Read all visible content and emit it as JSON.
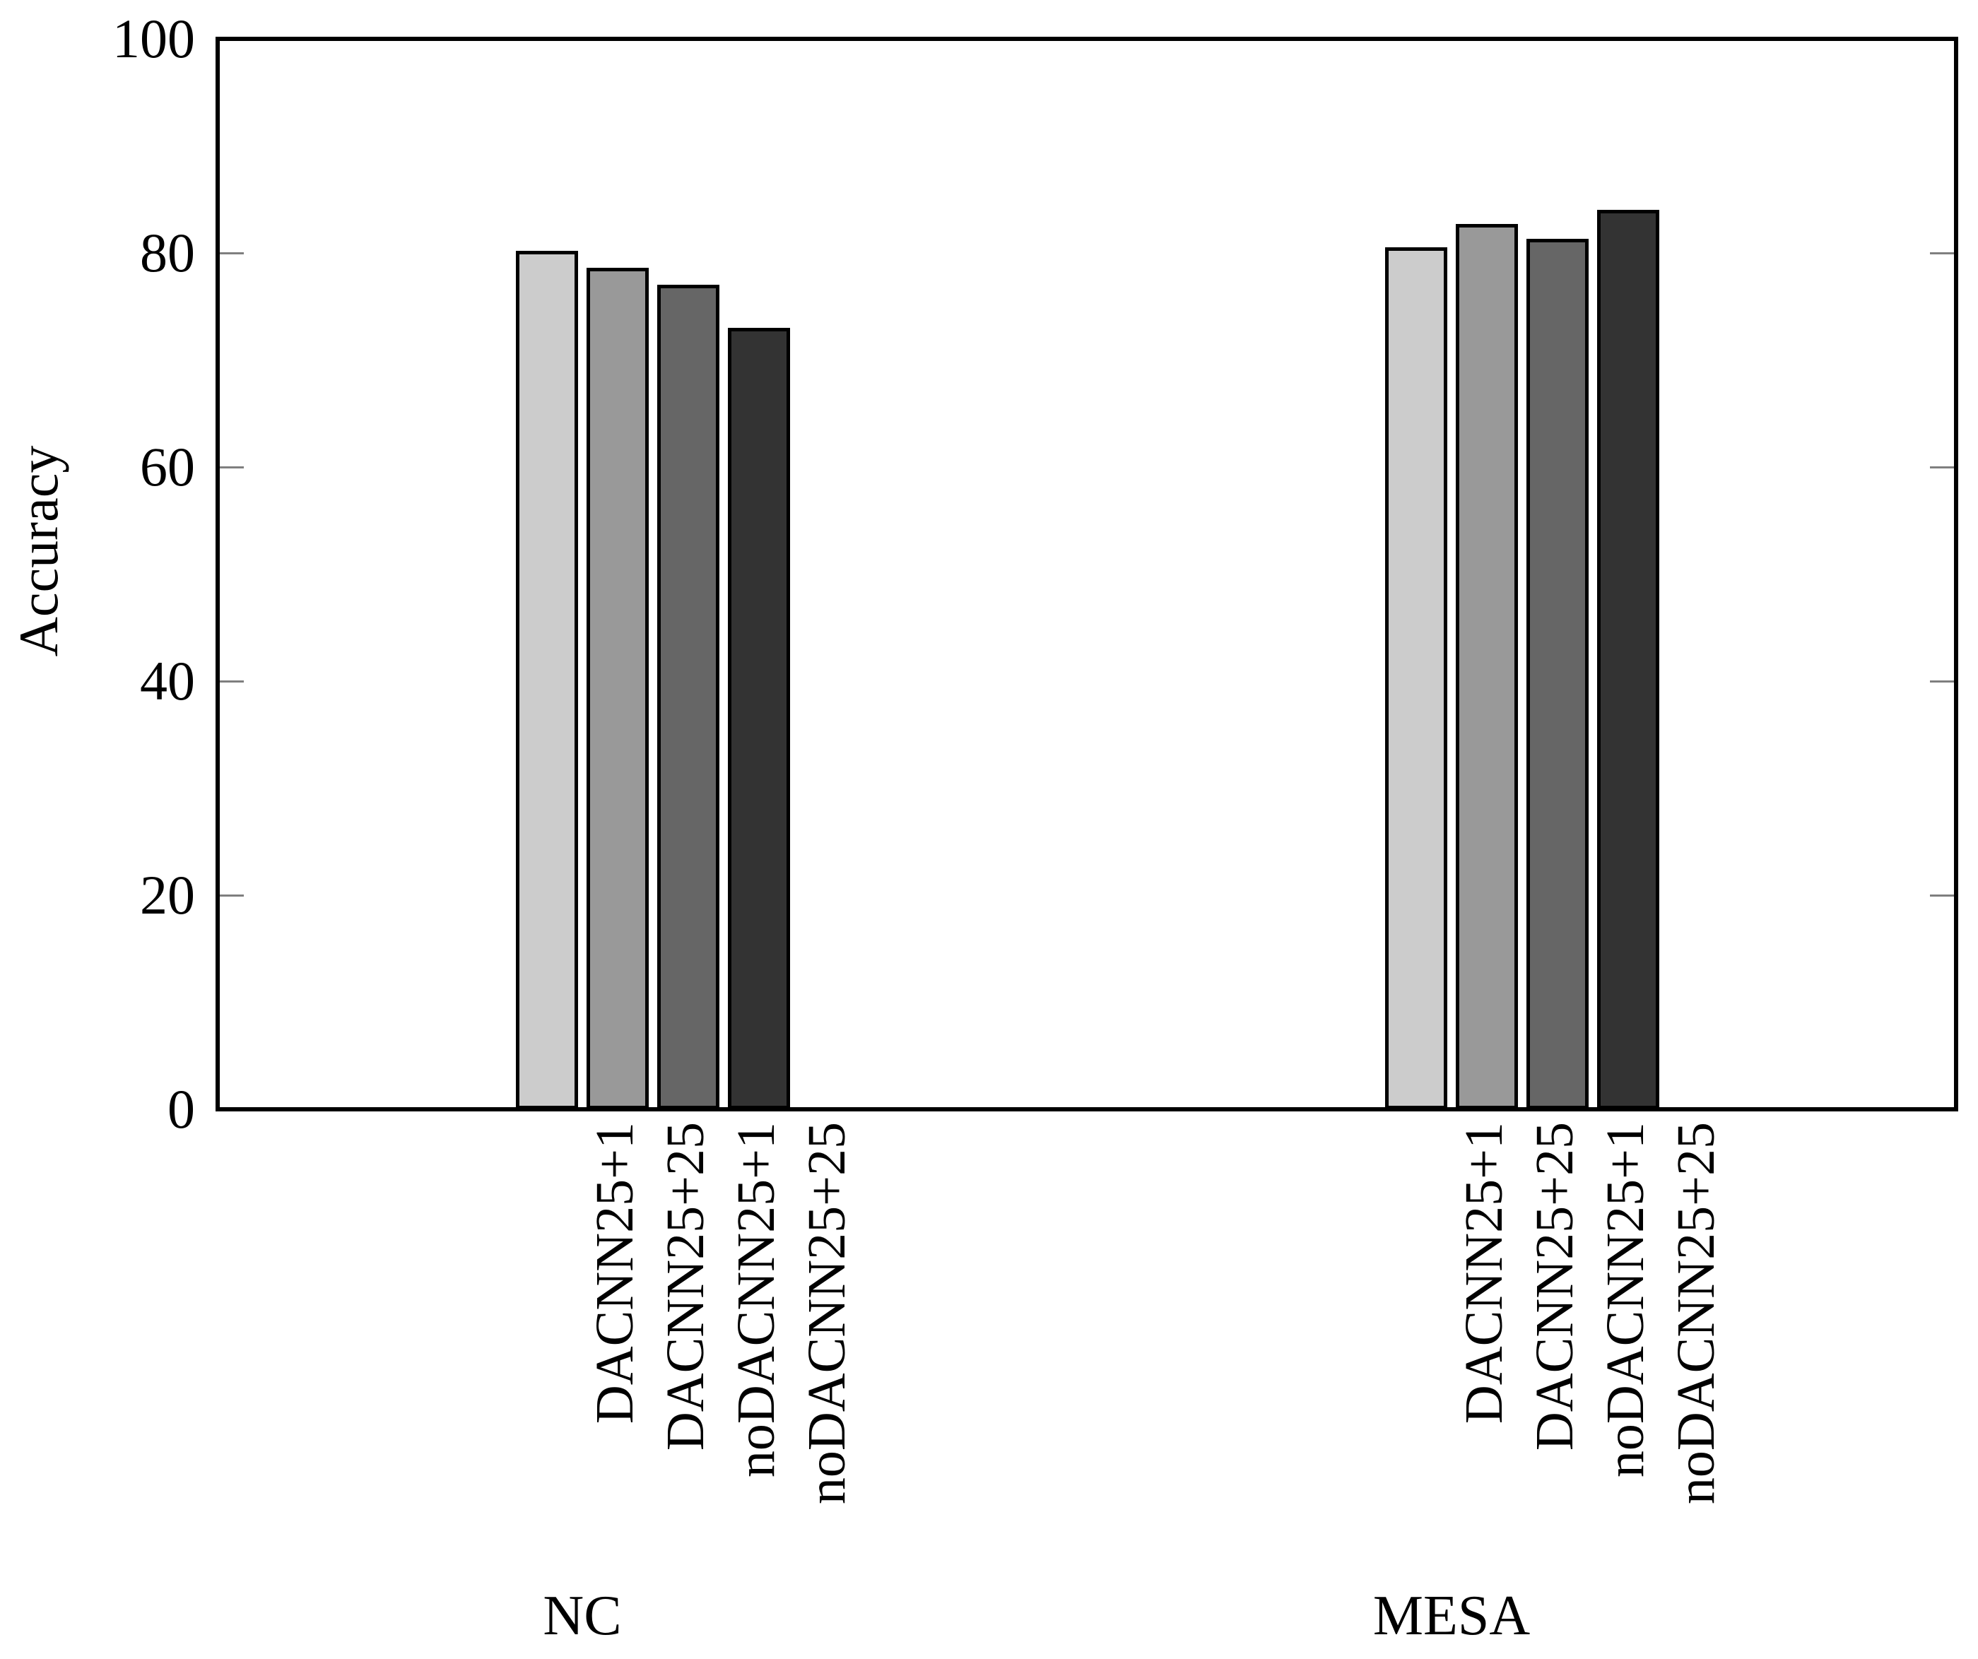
{
  "chart_data": {
    "type": "bar",
    "title": "",
    "xlabel": "",
    "ylabel": "Accuracy",
    "ylim": [
      0,
      100
    ],
    "yticks": [
      0,
      20,
      40,
      60,
      80,
      100
    ],
    "grid": false,
    "legend_position": "none",
    "categories": [
      "NC",
      "MESA"
    ],
    "bar_tick_labels": [
      "DACNN25+1",
      "DACNN25+25",
      "noDACNN25+1",
      "noDACNN25+25"
    ],
    "series": [
      {
        "name": "DACNN25+1",
        "color": "#cccccc",
        "values": [
          80.2,
          80.5
        ]
      },
      {
        "name": "DACNN25+25",
        "color": "#999999",
        "values": [
          78.6,
          82.7
        ]
      },
      {
        "name": "noDACNN25+1",
        "color": "#666666",
        "values": [
          77.0,
          81.3
        ]
      },
      {
        "name": "noDACNN25+25",
        "color": "#333333",
        "values": [
          73.0,
          84.0
        ]
      }
    ],
    "bar_border_color": "#000000",
    "axis_color": "#000000",
    "tick_mark_color": "#7f7f7f"
  }
}
